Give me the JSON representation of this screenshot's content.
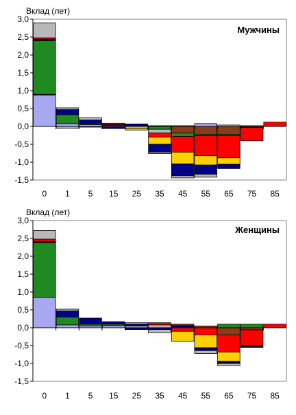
{
  "chart_data": [
    {
      "type": "bar",
      "stacked": true,
      "title": "Мужчины",
      "ylabel": "Вклад (лет)",
      "xlabel": "",
      "categories": [
        "0",
        "1",
        "5",
        "15",
        "25",
        "35",
        "45",
        "55",
        "65",
        "75",
        "85"
      ],
      "ylim": [
        -1.5,
        3.0
      ],
      "ytick_labels": [
        "-1,5",
        "-1,0",
        "-0,5",
        "0,0",
        "0,5",
        "1,0",
        "1,5",
        "2,0",
        "2,5",
        "3,0"
      ],
      "grid": false,
      "series_colors": [
        "#a8a8f0",
        "#000000",
        "#1f8a1f",
        "#000088",
        "#b8b8b8",
        "#ff0000",
        "#ffd000",
        "#8b3a1a"
      ],
      "segments": [
        [
          [
            0,
            0.88,
            "#a8a8f0"
          ],
          [
            0.88,
            0.9,
            "#000000"
          ],
          [
            0.9,
            2.4,
            "#1f8a1f"
          ],
          [
            2.4,
            2.44,
            "#000000"
          ],
          [
            2.44,
            2.48,
            "#ff0000"
          ],
          [
            2.48,
            2.9,
            "#b8b8b8"
          ]
        ],
        [
          [
            0,
            0.08,
            "#a8a8f0"
          ],
          [
            0.08,
            0.33,
            "#1f8a1f"
          ],
          [
            0.33,
            0.47,
            "#000088"
          ],
          [
            0.47,
            0.52,
            "#b8b8b8"
          ],
          [
            0,
            -0.05,
            "#a8a8f0"
          ]
        ],
        [
          [
            0,
            0.05,
            "#a8a8f0"
          ],
          [
            0.05,
            0.08,
            "#1f8a1f"
          ],
          [
            0.08,
            0.18,
            "#000088"
          ],
          [
            0.18,
            0.24,
            "#b8b8b8"
          ],
          [
            0,
            -0.02,
            "#a8a8f0"
          ]
        ],
        [
          [
            0,
            0.03,
            "#a8a8f0"
          ],
          [
            0.03,
            0.05,
            "#8b3a1a"
          ],
          [
            0.05,
            0.09,
            "#ff0000"
          ],
          [
            0,
            -0.06,
            "#000088"
          ]
        ],
        [
          [
            0,
            0.03,
            "#8b3a1a"
          ],
          [
            0.03,
            0.07,
            "#000088"
          ],
          [
            0,
            -0.05,
            "#b8b8b8"
          ],
          [
            -0.05,
            -0.1,
            "#ffd000"
          ]
        ],
        [
          [
            0,
            0.02,
            "#8b3a1a"
          ],
          [
            0,
            -0.08,
            "#1f8a1f"
          ],
          [
            -0.08,
            -0.18,
            "#b8b8b8"
          ],
          [
            -0.18,
            -0.3,
            "#ff0000"
          ],
          [
            -0.3,
            -0.5,
            "#ffd000"
          ],
          [
            -0.5,
            -0.72,
            "#000088"
          ],
          [
            -0.72,
            -0.76,
            "#b8b8b8"
          ]
        ],
        [
          [
            0,
            0.02,
            "#b8b8b8"
          ],
          [
            0,
            -0.18,
            "#8b3a1a"
          ],
          [
            -0.18,
            -0.28,
            "#1f8a1f"
          ],
          [
            -0.28,
            -0.72,
            "#ff0000"
          ],
          [
            -0.72,
            -1.05,
            "#ffd000"
          ],
          [
            -1.05,
            -1.38,
            "#000088"
          ],
          [
            -1.38,
            -1.44,
            "#b8b8b8"
          ]
        ],
        [
          [
            0,
            0.08,
            "#a8a8f0"
          ],
          [
            0,
            -0.22,
            "#8b3a1a"
          ],
          [
            -0.22,
            -0.26,
            "#1f8a1f"
          ],
          [
            -0.26,
            -0.82,
            "#ff0000"
          ],
          [
            -0.82,
            -1.08,
            "#ffd000"
          ],
          [
            -1.08,
            -1.34,
            "#000088"
          ],
          [
            -1.34,
            -1.42,
            "#b8b8b8"
          ]
        ],
        [
          [
            0,
            0.04,
            "#b8b8b8"
          ],
          [
            0,
            -0.22,
            "#8b3a1a"
          ],
          [
            -0.22,
            -0.26,
            "#1f8a1f"
          ],
          [
            -0.26,
            -0.88,
            "#ff0000"
          ],
          [
            -0.88,
            -1.06,
            "#ffd000"
          ],
          [
            -1.06,
            -1.18,
            "#000088"
          ]
        ],
        [
          [
            0,
            0.02,
            "#ff0000"
          ],
          [
            0,
            -0.03,
            "#8b3a1a"
          ],
          [
            -0.03,
            -0.4,
            "#ff0000"
          ]
        ],
        [
          [
            0,
            0.12,
            "#ff0000"
          ]
        ]
      ]
    },
    {
      "type": "bar",
      "stacked": true,
      "title": "Женщины",
      "ylabel": "Вклад (лет)",
      "xlabel": "",
      "categories": [
        "0",
        "1",
        "5",
        "15",
        "25",
        "35",
        "45",
        "55",
        "65",
        "75",
        "85"
      ],
      "ylim": [
        -1.5,
        3.0
      ],
      "ytick_labels": [
        "-1,5",
        "-1,0",
        "-0,5",
        "0,0",
        "0,5",
        "1,0",
        "1,5",
        "2,0",
        "2,5",
        "3,0"
      ],
      "grid": false,
      "series_colors": [
        "#a8a8f0",
        "#000000",
        "#1f8a1f",
        "#000088",
        "#b8b8b8",
        "#ff0000",
        "#ffd000",
        "#8b3a1a"
      ],
      "segments": [
        [
          [
            0,
            0.85,
            "#a8a8f0"
          ],
          [
            0.85,
            2.38,
            "#1f8a1f"
          ],
          [
            2.38,
            2.42,
            "#000000"
          ],
          [
            2.42,
            2.48,
            "#ff0000"
          ],
          [
            2.48,
            2.72,
            "#b8b8b8"
          ]
        ],
        [
          [
            0,
            0.08,
            "#a8a8f0"
          ],
          [
            0.08,
            0.3,
            "#1f8a1f"
          ],
          [
            0.3,
            0.47,
            "#000088"
          ],
          [
            0.47,
            0.52,
            "#b8b8b8"
          ]
        ],
        [
          [
            0,
            0.05,
            "#a8a8f0"
          ],
          [
            0.05,
            0.1,
            "#1f8a1f"
          ],
          [
            0.1,
            0.27,
            "#000088"
          ]
        ],
        [
          [
            0,
            0.06,
            "#a8a8f0"
          ],
          [
            0.06,
            0.1,
            "#1f8a1f"
          ],
          [
            0.1,
            0.17,
            "#000088"
          ]
        ],
        [
          [
            0,
            0.05,
            "#b8b8b8"
          ],
          [
            0.05,
            0.1,
            "#000088"
          ],
          [
            0.1,
            0.14,
            "#b8b8b8"
          ],
          [
            0,
            -0.05,
            "#000088"
          ]
        ],
        [
          [
            0,
            0.08,
            "#b8b8b8"
          ],
          [
            0.08,
            0.14,
            "#ff0000"
          ],
          [
            0,
            -0.05,
            "#000088"
          ],
          [
            -0.05,
            -0.14,
            "#b8b8b8"
          ]
        ],
        [
          [
            0,
            0.06,
            "#000088"
          ],
          [
            0.06,
            0.1,
            "#8b3a1a"
          ],
          [
            0,
            -0.1,
            "#ff0000"
          ],
          [
            -0.1,
            -0.38,
            "#ffd000"
          ]
        ],
        [
          [
            0,
            0.05,
            "#8b3a1a"
          ],
          [
            0,
            -0.2,
            "#ff0000"
          ],
          [
            -0.2,
            -0.56,
            "#ffd000"
          ],
          [
            -0.56,
            -0.64,
            "#000088"
          ],
          [
            -0.64,
            -0.72,
            "#b8b8b8"
          ]
        ],
        [
          [
            0,
            0.1,
            "#1f8a1f"
          ],
          [
            0,
            -0.2,
            "#8b3a1a"
          ],
          [
            -0.2,
            -0.68,
            "#ff0000"
          ],
          [
            -0.68,
            -0.94,
            "#ffd000"
          ],
          [
            -0.94,
            -1.0,
            "#000000"
          ],
          [
            -1.0,
            -1.06,
            "#b8b8b8"
          ]
        ],
        [
          [
            0,
            0.1,
            "#1f8a1f"
          ],
          [
            0,
            -0.06,
            "#8b3a1a"
          ],
          [
            -0.06,
            -0.5,
            "#ff0000"
          ],
          [
            -0.5,
            -0.55,
            "#000000"
          ]
        ],
        [
          [
            0,
            0.1,
            "#ff0000"
          ]
        ]
      ]
    }
  ]
}
